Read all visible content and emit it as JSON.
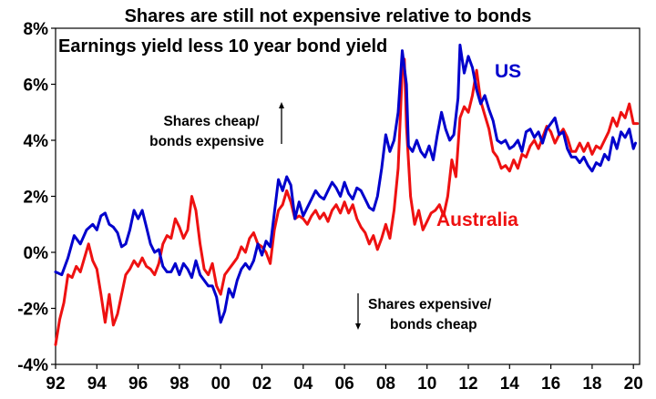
{
  "chart_data": {
    "type": "line",
    "title": "Shares are still not expensive relative to bonds",
    "subtitle": "Earnings yield less 10 year bond yield",
    "xlabel": "",
    "ylabel": "",
    "xlim": [
      1992.0,
      2020.3
    ],
    "ylim": [
      -4,
      8
    ],
    "x_ticks": [
      "92",
      "94",
      "96",
      "98",
      "00",
      "02",
      "04",
      "06",
      "08",
      "10",
      "12",
      "14",
      "16",
      "18",
      "20"
    ],
    "y_ticks": [
      "-4%",
      "-2%",
      "0%",
      "2%",
      "4%",
      "6%",
      "8%"
    ],
    "annotations": {
      "cheap": [
        "Shares cheap/",
        "bonds expensive"
      ],
      "expensive": [
        "Shares expensive/",
        "bonds cheap"
      ]
    },
    "series": [
      {
        "name": "US",
        "color": "#0000cc",
        "points": [
          [
            1992.0,
            -0.7
          ],
          [
            1992.3,
            -0.8
          ],
          [
            1992.6,
            -0.2
          ],
          [
            1992.9,
            0.6
          ],
          [
            1993.2,
            0.3
          ],
          [
            1993.5,
            0.8
          ],
          [
            1993.8,
            1.0
          ],
          [
            1994.0,
            0.8
          ],
          [
            1994.2,
            1.3
          ],
          [
            1994.4,
            1.4
          ],
          [
            1994.6,
            1.0
          ],
          [
            1994.8,
            0.9
          ],
          [
            1995.0,
            0.7
          ],
          [
            1995.2,
            0.2
          ],
          [
            1995.4,
            0.3
          ],
          [
            1995.6,
            0.8
          ],
          [
            1995.8,
            1.5
          ],
          [
            1996.0,
            1.2
          ],
          [
            1996.2,
            1.5
          ],
          [
            1996.4,
            0.9
          ],
          [
            1996.6,
            0.3
          ],
          [
            1996.8,
            0.0
          ],
          [
            1997.0,
            0.1
          ],
          [
            1997.2,
            -0.5
          ],
          [
            1997.4,
            -0.7
          ],
          [
            1997.6,
            -0.7
          ],
          [
            1997.8,
            -0.4
          ],
          [
            1998.0,
            -0.8
          ],
          [
            1998.2,
            -0.4
          ],
          [
            1998.4,
            -0.6
          ],
          [
            1998.6,
            -0.9
          ],
          [
            1998.8,
            -0.3
          ],
          [
            1999.0,
            -0.8
          ],
          [
            1999.2,
            -1.0
          ],
          [
            1999.4,
            -1.2
          ],
          [
            1999.6,
            -1.2
          ],
          [
            1999.8,
            -1.6
          ],
          [
            2000.0,
            -2.5
          ],
          [
            2000.2,
            -2.1
          ],
          [
            2000.4,
            -1.3
          ],
          [
            2000.6,
            -1.6
          ],
          [
            2000.8,
            -1.0
          ],
          [
            2001.0,
            -0.6
          ],
          [
            2001.2,
            -0.4
          ],
          [
            2001.4,
            -0.6
          ],
          [
            2001.6,
            -0.3
          ],
          [
            2001.8,
            0.3
          ],
          [
            2002.0,
            -0.1
          ],
          [
            2002.2,
            0.4
          ],
          [
            2002.4,
            0.2
          ],
          [
            2002.6,
            1.4
          ],
          [
            2002.8,
            2.6
          ],
          [
            2003.0,
            2.2
          ],
          [
            2003.2,
            2.7
          ],
          [
            2003.4,
            2.4
          ],
          [
            2003.6,
            1.2
          ],
          [
            2003.8,
            1.8
          ],
          [
            2004.0,
            1.3
          ],
          [
            2004.2,
            1.6
          ],
          [
            2004.4,
            1.9
          ],
          [
            2004.6,
            2.2
          ],
          [
            2004.8,
            2.0
          ],
          [
            2005.0,
            1.9
          ],
          [
            2005.2,
            2.2
          ],
          [
            2005.4,
            2.5
          ],
          [
            2005.6,
            2.3
          ],
          [
            2005.8,
            2.0
          ],
          [
            2006.0,
            2.5
          ],
          [
            2006.2,
            2.1
          ],
          [
            2006.4,
            1.9
          ],
          [
            2006.6,
            2.3
          ],
          [
            2006.8,
            2.2
          ],
          [
            2007.0,
            1.9
          ],
          [
            2007.2,
            1.6
          ],
          [
            2007.4,
            1.5
          ],
          [
            2007.6,
            2.0
          ],
          [
            2007.8,
            3.0
          ],
          [
            2008.0,
            4.2
          ],
          [
            2008.2,
            3.6
          ],
          [
            2008.4,
            4.0
          ],
          [
            2008.6,
            5.0
          ],
          [
            2008.8,
            7.2
          ],
          [
            2009.0,
            6.0
          ],
          [
            2009.1,
            3.8
          ],
          [
            2009.3,
            3.6
          ],
          [
            2009.5,
            4.0
          ],
          [
            2009.7,
            3.6
          ],
          [
            2009.9,
            3.4
          ],
          [
            2010.1,
            3.8
          ],
          [
            2010.3,
            3.3
          ],
          [
            2010.5,
            4.2
          ],
          [
            2010.7,
            5.0
          ],
          [
            2010.9,
            4.4
          ],
          [
            2011.1,
            4.0
          ],
          [
            2011.3,
            4.2
          ],
          [
            2011.5,
            5.5
          ],
          [
            2011.6,
            7.4
          ],
          [
            2011.8,
            6.4
          ],
          [
            2012.0,
            7.0
          ],
          [
            2012.2,
            6.6
          ],
          [
            2012.4,
            5.8
          ],
          [
            2012.6,
            5.3
          ],
          [
            2012.8,
            5.6
          ],
          [
            2013.0,
            5.1
          ],
          [
            2013.2,
            4.7
          ],
          [
            2013.4,
            4.0
          ],
          [
            2013.6,
            3.9
          ],
          [
            2013.8,
            4.0
          ],
          [
            2014.0,
            3.7
          ],
          [
            2014.2,
            3.8
          ],
          [
            2014.4,
            4.0
          ],
          [
            2014.6,
            3.6
          ],
          [
            2014.8,
            4.3
          ],
          [
            2015.0,
            4.4
          ],
          [
            2015.2,
            4.1
          ],
          [
            2015.4,
            4.3
          ],
          [
            2015.6,
            3.9
          ],
          [
            2015.8,
            4.4
          ],
          [
            2016.0,
            4.6
          ],
          [
            2016.2,
            4.8
          ],
          [
            2016.4,
            4.2
          ],
          [
            2016.6,
            4.3
          ],
          [
            2016.8,
            3.7
          ],
          [
            2017.0,
            3.4
          ],
          [
            2017.2,
            3.4
          ],
          [
            2017.4,
            3.2
          ],
          [
            2017.6,
            3.4
          ],
          [
            2017.8,
            3.1
          ],
          [
            2018.0,
            2.9
          ],
          [
            2018.2,
            3.2
          ],
          [
            2018.4,
            3.1
          ],
          [
            2018.6,
            3.5
          ],
          [
            2018.8,
            3.3
          ],
          [
            2019.0,
            4.1
          ],
          [
            2019.2,
            3.7
          ],
          [
            2019.4,
            4.3
          ],
          [
            2019.6,
            4.1
          ],
          [
            2019.8,
            4.4
          ],
          [
            2020.0,
            3.7
          ],
          [
            2020.1,
            3.9
          ]
        ]
      },
      {
        "name": "Australia",
        "color": "#ee1111",
        "points": [
          [
            1992.0,
            -3.3
          ],
          [
            1992.2,
            -2.4
          ],
          [
            1992.4,
            -1.8
          ],
          [
            1992.6,
            -0.8
          ],
          [
            1992.8,
            -0.9
          ],
          [
            1993.0,
            -0.5
          ],
          [
            1993.2,
            -0.7
          ],
          [
            1993.4,
            -0.2
          ],
          [
            1993.6,
            0.3
          ],
          [
            1993.8,
            -0.3
          ],
          [
            1994.0,
            -0.6
          ],
          [
            1994.2,
            -1.5
          ],
          [
            1994.4,
            -2.5
          ],
          [
            1994.6,
            -1.5
          ],
          [
            1994.8,
            -2.6
          ],
          [
            1995.0,
            -2.2
          ],
          [
            1995.2,
            -1.5
          ],
          [
            1995.4,
            -0.8
          ],
          [
            1995.6,
            -0.6
          ],
          [
            1995.8,
            -0.3
          ],
          [
            1996.0,
            -0.5
          ],
          [
            1996.2,
            -0.2
          ],
          [
            1996.4,
            -0.5
          ],
          [
            1996.6,
            -0.6
          ],
          [
            1996.8,
            -0.8
          ],
          [
            1997.0,
            -0.4
          ],
          [
            1997.2,
            0.3
          ],
          [
            1997.4,
            0.6
          ],
          [
            1997.6,
            0.5
          ],
          [
            1997.8,
            1.2
          ],
          [
            1998.0,
            0.9
          ],
          [
            1998.2,
            0.5
          ],
          [
            1998.4,
            0.8
          ],
          [
            1998.6,
            2.0
          ],
          [
            1998.8,
            1.5
          ],
          [
            1999.0,
            0.3
          ],
          [
            1999.2,
            -0.6
          ],
          [
            1999.4,
            -0.8
          ],
          [
            1999.6,
            -0.4
          ],
          [
            1999.8,
            -1.2
          ],
          [
            2000.0,
            -1.5
          ],
          [
            2000.2,
            -0.8
          ],
          [
            2000.4,
            -0.6
          ],
          [
            2000.6,
            -0.4
          ],
          [
            2000.8,
            -0.2
          ],
          [
            2001.0,
            0.2
          ],
          [
            2001.2,
            0.0
          ],
          [
            2001.4,
            0.5
          ],
          [
            2001.6,
            0.7
          ],
          [
            2001.8,
            0.3
          ],
          [
            2002.0,
            0.2
          ],
          [
            2002.2,
            0.0
          ],
          [
            2002.4,
            -0.4
          ],
          [
            2002.6,
            0.8
          ],
          [
            2002.8,
            1.5
          ],
          [
            2003.0,
            1.7
          ],
          [
            2003.2,
            2.2
          ],
          [
            2003.4,
            1.8
          ],
          [
            2003.6,
            1.2
          ],
          [
            2003.8,
            1.3
          ],
          [
            2004.0,
            1.2
          ],
          [
            2004.2,
            1.0
          ],
          [
            2004.4,
            1.3
          ],
          [
            2004.6,
            1.5
          ],
          [
            2004.8,
            1.2
          ],
          [
            2005.0,
            1.4
          ],
          [
            2005.2,
            1.1
          ],
          [
            2005.4,
            1.5
          ],
          [
            2005.6,
            1.7
          ],
          [
            2005.8,
            1.4
          ],
          [
            2006.0,
            1.8
          ],
          [
            2006.2,
            1.4
          ],
          [
            2006.4,
            1.7
          ],
          [
            2006.6,
            1.2
          ],
          [
            2006.8,
            0.9
          ],
          [
            2007.0,
            0.7
          ],
          [
            2007.2,
            0.3
          ],
          [
            2007.4,
            0.6
          ],
          [
            2007.6,
            0.1
          ],
          [
            2007.8,
            0.5
          ],
          [
            2008.0,
            1.0
          ],
          [
            2008.2,
            0.5
          ],
          [
            2008.4,
            1.5
          ],
          [
            2008.6,
            3.0
          ],
          [
            2008.8,
            6.5
          ],
          [
            2008.9,
            6.9
          ],
          [
            2009.0,
            4.5
          ],
          [
            2009.2,
            2.0
          ],
          [
            2009.4,
            1.0
          ],
          [
            2009.6,
            1.5
          ],
          [
            2009.8,
            0.8
          ],
          [
            2010.0,
            1.1
          ],
          [
            2010.2,
            1.4
          ],
          [
            2010.4,
            1.5
          ],
          [
            2010.6,
            1.7
          ],
          [
            2010.8,
            1.3
          ],
          [
            2011.0,
            2.0
          ],
          [
            2011.2,
            3.3
          ],
          [
            2011.4,
            2.7
          ],
          [
            2011.6,
            4.8
          ],
          [
            2011.8,
            5.2
          ],
          [
            2012.0,
            5.0
          ],
          [
            2012.2,
            5.6
          ],
          [
            2012.4,
            6.5
          ],
          [
            2012.6,
            5.4
          ],
          [
            2012.8,
            4.9
          ],
          [
            2013.0,
            4.4
          ],
          [
            2013.2,
            3.6
          ],
          [
            2013.4,
            3.4
          ],
          [
            2013.6,
            3.0
          ],
          [
            2013.8,
            3.1
          ],
          [
            2014.0,
            2.9
          ],
          [
            2014.2,
            3.3
          ],
          [
            2014.4,
            3.0
          ],
          [
            2014.6,
            3.5
          ],
          [
            2014.8,
            3.4
          ],
          [
            2015.0,
            3.8
          ],
          [
            2015.2,
            4.0
          ],
          [
            2015.4,
            3.7
          ],
          [
            2015.6,
            4.1
          ],
          [
            2015.8,
            4.5
          ],
          [
            2016.0,
            4.3
          ],
          [
            2016.2,
            3.9
          ],
          [
            2016.4,
            4.2
          ],
          [
            2016.6,
            4.4
          ],
          [
            2016.8,
            4.1
          ],
          [
            2017.0,
            3.6
          ],
          [
            2017.2,
            3.6
          ],
          [
            2017.4,
            3.9
          ],
          [
            2017.6,
            3.6
          ],
          [
            2017.8,
            3.9
          ],
          [
            2018.0,
            3.5
          ],
          [
            2018.2,
            3.8
          ],
          [
            2018.4,
            3.7
          ],
          [
            2018.6,
            4.0
          ],
          [
            2018.8,
            4.3
          ],
          [
            2019.0,
            4.8
          ],
          [
            2019.2,
            4.5
          ],
          [
            2019.4,
            5.0
          ],
          [
            2019.6,
            4.8
          ],
          [
            2019.8,
            5.3
          ],
          [
            2020.0,
            4.6
          ],
          [
            2020.2,
            4.6
          ]
        ]
      }
    ]
  }
}
